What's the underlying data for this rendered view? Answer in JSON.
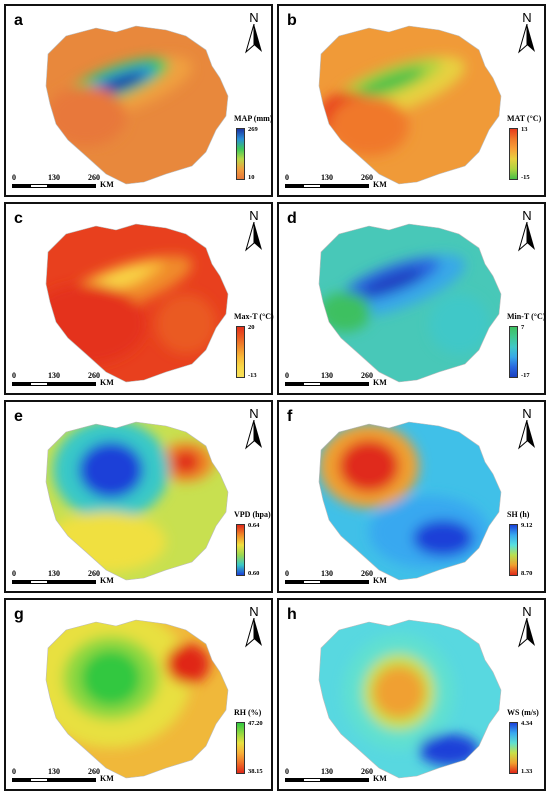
{
  "panels": [
    {
      "label": "a",
      "legend_title": "MAP (mm)",
      "legend_top": "269",
      "legend_bottom": "10",
      "colors": [
        "#1a33a0",
        "#2a8fd8",
        "#3ec85a",
        "#b8d848",
        "#f0a040",
        "#e8783a"
      ],
      "base": "#e8883c"
    },
    {
      "label": "b",
      "legend_title": "MAT (°C)",
      "legend_top": "13",
      "legend_bottom": "-15",
      "colors": [
        "#e83a1a",
        "#f0782a",
        "#f8a038",
        "#e8d040",
        "#b0d440",
        "#48c048"
      ],
      "base": "#f09a38"
    },
    {
      "label": "c",
      "legend_title": "Max-T (°C)",
      "legend_top": "20",
      "legend_bottom": "-13",
      "colors": [
        "#e4301a",
        "#ea5a22",
        "#f08a2c",
        "#f8b838",
        "#f8d848",
        "#f8e058"
      ],
      "base": "#e8401e"
    },
    {
      "label": "d",
      "legend_title": "Min-T (°C)",
      "legend_top": "7",
      "legend_bottom": "-17",
      "colors": [
        "#3ec060",
        "#40c890",
        "#40c8c8",
        "#38a8e8",
        "#2a68e0",
        "#1a40c0"
      ],
      "base": "#48c8b8"
    },
    {
      "label": "e",
      "legend_title": "VPD (hpa)",
      "legend_top": "0.64",
      "legend_bottom": "0.60",
      "colors": [
        "#e02a1a",
        "#f08a28",
        "#f0e040",
        "#9ad850",
        "#38c8c8",
        "#1a40d8"
      ],
      "base": "#c8e050"
    },
    {
      "label": "f",
      "legend_title": "SH (h)",
      "legend_top": "9.12",
      "legend_bottom": "8.70",
      "colors": [
        "#1a40d8",
        "#38a8f0",
        "#58e0e0",
        "#b8e050",
        "#f0a030",
        "#e02a1a"
      ],
      "base": "#40c0e8"
    },
    {
      "label": "g",
      "legend_title": "RH (%)",
      "legend_top": "47.20",
      "legend_bottom": "38.15",
      "colors": [
        "#30c840",
        "#90d840",
        "#e8e040",
        "#f8b038",
        "#f07028",
        "#e02818"
      ],
      "base": "#f0b83a"
    },
    {
      "label": "h",
      "legend_title": "WS (m/s)",
      "legend_top": "4.34",
      "legend_bottom": "1.33",
      "colors": [
        "#1a40d8",
        "#38a8f0",
        "#60e0d0",
        "#c8e048",
        "#f0a030",
        "#e02818"
      ],
      "base": "#58d8e0"
    }
  ],
  "north_letter": "N",
  "scale": {
    "t0": "0",
    "t1": "130",
    "t2": "260",
    "unit": "KM"
  }
}
